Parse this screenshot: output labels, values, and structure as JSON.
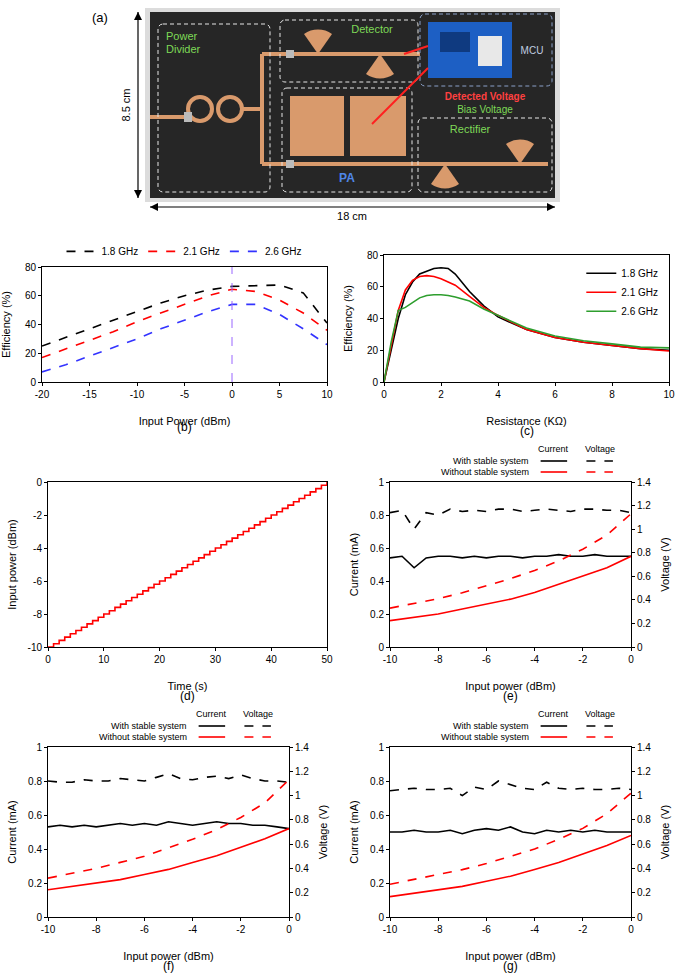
{
  "diagram": {
    "panel": "(a)",
    "width_label": "18 cm",
    "height_label": "8.5 cm",
    "blocks": {
      "power_divider": {
        "label": "Power Divider",
        "color": "#7ed957"
      },
      "detector": {
        "label": "Detector",
        "color": "#7ed957"
      },
      "pa": {
        "label": "PA",
        "color": "#4f86e8"
      },
      "rectifier": {
        "label": "Rectifier",
        "color": "#7ed957"
      },
      "mcu": {
        "label": "MCU",
        "color": "#c0cde0"
      }
    },
    "signals": {
      "detected": {
        "label": "Detected Voltage",
        "color": "#ff4040"
      },
      "bias": {
        "label": "Bias Voltage",
        "color": "#7ed957"
      }
    }
  },
  "chart_data": [
    {
      "panel": "(b)",
      "type": "line",
      "line_style": "dash",
      "x_label": "Input Power (dBm)",
      "y_label": "Efficiency (%)",
      "xlim": [
        -20,
        10
      ],
      "xticks": [
        -20,
        -15,
        -10,
        -5,
        0,
        5,
        10
      ],
      "ylim": [
        0,
        80
      ],
      "yticks": [
        0,
        20,
        40,
        60,
        80
      ],
      "legend": "top",
      "reference_line": {
        "x": 0,
        "color": "#9966ff",
        "line_style": "dash"
      },
      "x": [
        -20,
        -17.5,
        -15,
        -12.5,
        -10,
        -7.5,
        -5,
        -2.5,
        0,
        2.5,
        5,
        7.5,
        10
      ],
      "series": [
        {
          "name": "1.8 GHz",
          "color": "#000000",
          "values": [
            25,
            31,
            37,
            43,
            49,
            55,
            60,
            64,
            66.5,
            67,
            67.5,
            62,
            41
          ]
        },
        {
          "name": "2.1 GHz",
          "color": "#ff0000",
          "values": [
            17,
            23,
            29,
            35,
            42,
            48,
            54,
            60,
            64.5,
            63,
            57,
            48,
            36
          ]
        },
        {
          "name": "2.6 GHz",
          "color": "#3333ff",
          "values": [
            7,
            12,
            18,
            24,
            30,
            37,
            43,
            49,
            54,
            54,
            47,
            37,
            26
          ]
        }
      ]
    },
    {
      "panel": "(c)",
      "type": "line",
      "line_style": "solid",
      "x_label": "Resistance (KΩ)",
      "y_label": "Efficiency (%)",
      "xlim": [
        0,
        10
      ],
      "xticks": [
        0,
        2,
        4,
        6,
        8,
        10
      ],
      "ylim": [
        0,
        80
      ],
      "yticks": [
        0,
        20,
        40,
        60,
        80
      ],
      "legend": "top right",
      "x": [
        0,
        0.25,
        0.5,
        0.75,
        1,
        1.25,
        1.5,
        1.75,
        2,
        2.25,
        2.5,
        3,
        3.5,
        4,
        5,
        6,
        7,
        8,
        9,
        10
      ],
      "series": [
        {
          "name": "1.8 GHz",
          "color": "#000000",
          "values": [
            0,
            20,
            40,
            55,
            63,
            68,
            70,
            71.5,
            72,
            71.5,
            68,
            57,
            48,
            41,
            33,
            28,
            25,
            23,
            21,
            20
          ]
        },
        {
          "name": "2.1 GHz",
          "color": "#ff0000",
          "values": [
            0,
            22,
            45,
            58,
            64,
            66.5,
            67,
            66.5,
            65,
            63,
            61,
            54,
            47,
            42,
            33,
            28,
            25,
            23,
            21,
            19.5
          ]
        },
        {
          "name": "2.6 GHz",
          "color": "#2e9e2e",
          "values": [
            0,
            25,
            45,
            47,
            50,
            53,
            54.5,
            55,
            55,
            54.5,
            53.5,
            51,
            46,
            42,
            34,
            29,
            26,
            24,
            22,
            21.5
          ]
        }
      ]
    },
    {
      "panel": "(d)",
      "type": "line",
      "line_style": "step",
      "x_label": "Time (s)",
      "y_label": "Input power (dBm)",
      "xlim": [
        0,
        50
      ],
      "xticks": [
        0,
        10,
        20,
        30,
        40,
        50
      ],
      "ylim": [
        -10,
        0
      ],
      "yticks": [
        -10,
        -8,
        -6,
        -4,
        -2,
        0
      ],
      "color": "#ff0000",
      "x": [
        0,
        1,
        2,
        3,
        4,
        5,
        6,
        7,
        8,
        9,
        10,
        11,
        12,
        13,
        14,
        15,
        16,
        17,
        18,
        19,
        20,
        21,
        22,
        23,
        24,
        25,
        26,
        27,
        28,
        29,
        30,
        31,
        32,
        33,
        34,
        35,
        36,
        37,
        38,
        39,
        40,
        41,
        42,
        43,
        44,
        45,
        46,
        47,
        48,
        49,
        50
      ],
      "values": [
        -10,
        -9.8,
        -9.6,
        -9.4,
        -9.2,
        -9,
        -8.8,
        -8.6,
        -8.4,
        -8.2,
        -8,
        -7.8,
        -7.6,
        -7.4,
        -7.2,
        -7,
        -6.8,
        -6.6,
        -6.4,
        -6.2,
        -6,
        -5.8,
        -5.6,
        -5.4,
        -5.2,
        -5,
        -4.8,
        -4.6,
        -4.4,
        -4.2,
        -4,
        -3.8,
        -3.6,
        -3.4,
        -3.2,
        -3,
        -2.8,
        -2.6,
        -2.4,
        -2.2,
        -2,
        -1.8,
        -1.6,
        -1.4,
        -1.2,
        -1,
        -0.8,
        -0.6,
        -0.4,
        -0.2,
        0
      ]
    },
    {
      "panel": "(e)",
      "type": "line",
      "x_label": "Input power (dBm)",
      "y_label": "Current (mA)",
      "y2_label": "Voltage (V)",
      "xlim": [
        -10,
        0
      ],
      "xticks": [
        -10,
        -8,
        -6,
        -4,
        -2,
        0
      ],
      "ylim": [
        0,
        1
      ],
      "yticks": [
        0,
        0.2,
        0.4,
        0.6,
        0.8,
        1
      ],
      "y2lim": [
        0,
        1.4
      ],
      "y2ticks": [
        0,
        0.2,
        0.4,
        0.6,
        0.8,
        1,
        1.2,
        1.4
      ],
      "legend": "top",
      "legend_columns": [
        "Current",
        "Voltage"
      ],
      "series": [
        {
          "name": "With stable system",
          "group": "Current",
          "color": "#000000",
          "line_style": "solid",
          "x": [
            -10,
            -9.5,
            -9,
            -8.5,
            -8,
            -7.5,
            -7,
            -6.5,
            -6,
            -5.5,
            -5,
            -4.5,
            -4,
            -3.5,
            -3,
            -2.5,
            -2,
            -1.5,
            -1,
            -0.5,
            0
          ],
          "values": [
            0.54,
            0.55,
            0.48,
            0.54,
            0.55,
            0.55,
            0.54,
            0.55,
            0.54,
            0.55,
            0.55,
            0.54,
            0.55,
            0.55,
            0.56,
            0.55,
            0.55,
            0.56,
            0.55,
            0.55,
            0.55
          ]
        },
        {
          "name": "With stable system",
          "group": "Voltage",
          "axis": "y2",
          "color": "#000000",
          "line_style": "dash",
          "x": [
            -10,
            -9.5,
            -9,
            -8.5,
            -8,
            -7.5,
            -7,
            -6.5,
            -6,
            -5.5,
            -5,
            -4.5,
            -4,
            -3.5,
            -3,
            -2.5,
            -2,
            -1.5,
            -1,
            -0.5,
            0
          ],
          "values": [
            1.14,
            1.16,
            1.0,
            1.14,
            1.12,
            1.17,
            1.15,
            1.16,
            1.15,
            1.17,
            1.17,
            1.15,
            1.16,
            1.17,
            1.16,
            1.15,
            1.17,
            1.17,
            1.16,
            1.16,
            1.14
          ]
        },
        {
          "name": "Without stable system",
          "group": "Current",
          "color": "#ff0000",
          "line_style": "solid",
          "x": [
            -10,
            -9,
            -8,
            -7,
            -6,
            -5,
            -4,
            -3,
            -2,
            -1,
            0
          ],
          "values": [
            0.16,
            0.18,
            0.2,
            0.23,
            0.26,
            0.29,
            0.33,
            0.38,
            0.43,
            0.48,
            0.55
          ]
        },
        {
          "name": "Without stable system",
          "group": "Voltage",
          "axis": "y2",
          "color": "#ff0000",
          "line_style": "dash",
          "x": [
            -10,
            -9,
            -8,
            -7,
            -6,
            -5,
            -4,
            -3,
            -2,
            -1,
            0
          ],
          "values": [
            0.33,
            0.37,
            0.41,
            0.46,
            0.52,
            0.58,
            0.65,
            0.73,
            0.83,
            0.95,
            1.13
          ]
        }
      ]
    },
    {
      "panel": "(f)",
      "type": "line",
      "x_label": "Input power (dBm)",
      "y_label": "Current (mA)",
      "y2_label": "Voltage (V)",
      "xlim": [
        -10,
        0
      ],
      "xticks": [
        -10,
        -8,
        -6,
        -4,
        -2,
        0
      ],
      "ylim": [
        0,
        1
      ],
      "yticks": [
        0,
        0.2,
        0.4,
        0.6,
        0.8,
        1
      ],
      "y2lim": [
        0,
        1.4
      ],
      "y2ticks": [
        0,
        0.2,
        0.4,
        0.6,
        0.8,
        1,
        1.2,
        1.4
      ],
      "legend": "top",
      "legend_columns": [
        "Current",
        "Voltage"
      ],
      "series": [
        {
          "name": "With stable system",
          "group": "Current",
          "color": "#000000",
          "line_style": "solid",
          "x": [
            -10,
            -9.5,
            -9,
            -8.5,
            -8,
            -7.5,
            -7,
            -6.5,
            -6,
            -5.5,
            -5,
            -4.5,
            -4,
            -3.5,
            -3,
            -2.5,
            -2,
            -1.5,
            -1,
            -0.5,
            0
          ],
          "values": [
            0.53,
            0.54,
            0.53,
            0.54,
            0.53,
            0.54,
            0.55,
            0.54,
            0.55,
            0.54,
            0.56,
            0.55,
            0.54,
            0.55,
            0.56,
            0.55,
            0.55,
            0.54,
            0.54,
            0.53,
            0.52
          ]
        },
        {
          "name": "With stable system",
          "group": "Voltage",
          "axis": "y2",
          "color": "#000000",
          "line_style": "dash",
          "x": [
            -10,
            -9.5,
            -9,
            -8.5,
            -8,
            -7.5,
            -7,
            -6.5,
            -6,
            -5.5,
            -5,
            -4.5,
            -4,
            -3.5,
            -3,
            -2.5,
            -2,
            -1.5,
            -1,
            -0.5,
            0
          ],
          "values": [
            1.12,
            1.11,
            1.11,
            1.13,
            1.12,
            1.12,
            1.14,
            1.13,
            1.12,
            1.15,
            1.18,
            1.14,
            1.13,
            1.15,
            1.16,
            1.14,
            1.17,
            1.14,
            1.12,
            1.12,
            1.11
          ]
        },
        {
          "name": "Without stable system",
          "group": "Current",
          "color": "#ff0000",
          "line_style": "solid",
          "x": [
            -10,
            -9,
            -8,
            -7,
            -6,
            -5,
            -4,
            -3,
            -2,
            -1,
            0
          ],
          "values": [
            0.16,
            0.18,
            0.2,
            0.22,
            0.25,
            0.28,
            0.32,
            0.36,
            0.41,
            0.46,
            0.52
          ]
        },
        {
          "name": "Without stable system",
          "group": "Voltage",
          "axis": "y2",
          "color": "#ff0000",
          "line_style": "dash",
          "x": [
            -10,
            -9,
            -8,
            -7,
            -6,
            -5,
            -4,
            -3,
            -2,
            -1,
            0
          ],
          "values": [
            0.32,
            0.36,
            0.4,
            0.45,
            0.5,
            0.57,
            0.64,
            0.72,
            0.82,
            0.94,
            1.13
          ]
        }
      ]
    },
    {
      "panel": "(g)",
      "type": "line",
      "x_label": "Input power (dBm)",
      "y_label": "Current (mA)",
      "y2_label": "Voltage (V)",
      "xlim": [
        -10,
        0
      ],
      "xticks": [
        -10,
        -8,
        -6,
        -4,
        -2,
        0
      ],
      "ylim": [
        0,
        1
      ],
      "yticks": [
        0,
        0.2,
        0.4,
        0.6,
        0.8,
        1
      ],
      "y2lim": [
        0,
        1.4
      ],
      "y2ticks": [
        0,
        0.2,
        0.4,
        0.6,
        0.8,
        1,
        1.2,
        1.4
      ],
      "legend": "top",
      "legend_columns": [
        "Current",
        "Voltage"
      ],
      "series": [
        {
          "name": "With stable system",
          "group": "Current",
          "color": "#000000",
          "line_style": "solid",
          "x": [
            -10,
            -9.5,
            -9,
            -8.5,
            -8,
            -7.5,
            -7,
            -6.5,
            -6,
            -5.5,
            -5,
            -4.5,
            -4,
            -3.5,
            -3,
            -2.5,
            -2,
            -1.5,
            -1,
            -0.5,
            0
          ],
          "values": [
            0.5,
            0.5,
            0.51,
            0.5,
            0.5,
            0.51,
            0.49,
            0.51,
            0.52,
            0.51,
            0.53,
            0.5,
            0.49,
            0.51,
            0.5,
            0.51,
            0.5,
            0.51,
            0.5,
            0.5,
            0.5
          ]
        },
        {
          "name": "With stable system",
          "group": "Voltage",
          "axis": "y2",
          "color": "#000000",
          "line_style": "dash",
          "x": [
            -10,
            -9.5,
            -9,
            -8.5,
            -8,
            -7.5,
            -7,
            -6.5,
            -6,
            -5.5,
            -5,
            -4.5,
            -4,
            -3.5,
            -3,
            -2.5,
            -2,
            -1.5,
            -1,
            -0.5,
            0
          ],
          "values": [
            1.04,
            1.05,
            1.06,
            1.05,
            1.05,
            1.06,
            1.0,
            1.07,
            1.05,
            1.12,
            1.09,
            1.06,
            1.05,
            1.11,
            1.06,
            1.05,
            1.06,
            1.05,
            1.05,
            1.06,
            1.05
          ]
        },
        {
          "name": "Without stable system",
          "group": "Current",
          "color": "#ff0000",
          "line_style": "solid",
          "x": [
            -10,
            -9,
            -8,
            -7,
            -6,
            -5,
            -4,
            -3,
            -2,
            -1,
            0
          ],
          "values": [
            0.12,
            0.14,
            0.16,
            0.18,
            0.21,
            0.24,
            0.28,
            0.32,
            0.37,
            0.42,
            0.48
          ]
        },
        {
          "name": "Without stable system",
          "group": "Voltage",
          "axis": "y2",
          "color": "#ff0000",
          "line_style": "dash",
          "x": [
            -10,
            -9,
            -8,
            -7,
            -6,
            -5,
            -4,
            -3,
            -2,
            -1,
            0
          ],
          "values": [
            0.27,
            0.31,
            0.35,
            0.39,
            0.44,
            0.5,
            0.56,
            0.64,
            0.73,
            0.85,
            1.02
          ]
        }
      ]
    }
  ]
}
